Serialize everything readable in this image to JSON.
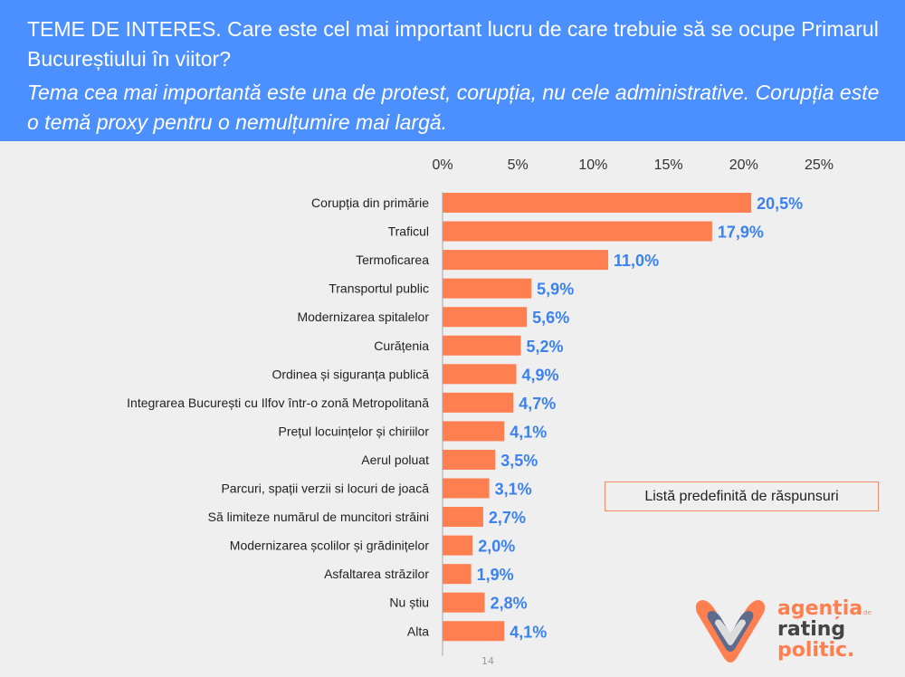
{
  "header": {
    "title": "TEME DE INTERES. Care este cel mai important lucru de care trebuie să se ocupe Primarul Bucureștiului în viitor?",
    "subtitle": "Tema cea mai importantă este una de protest, corupția, nu cele administrative. Corupția este o temă proxy pentru o nemulțumire mai largă."
  },
  "note": "Listă predefinită de răspunsuri",
  "page_number": "14",
  "logo": {
    "text": "agenția de rating politic."
  },
  "colors": {
    "header": "#4c8fff",
    "bar": "#ff7f50",
    "value_label": "#3b82f0",
    "background": "#efefef"
  },
  "chart_data": {
    "type": "bar",
    "orientation": "horizontal",
    "title": "",
    "xlabel": "",
    "ylabel": "",
    "xlim": [
      0,
      25
    ],
    "x_ticks": [
      "0%",
      "5%",
      "10%",
      "15%",
      "20%",
      "25%"
    ],
    "x_axis_position": "top",
    "grid": false,
    "categories": [
      "Corupția din primărie",
      "Traficul",
      "Termoficarea",
      "Transportul public",
      "Modernizarea spitalelor",
      "Curățenia",
      "Ordinea și siguranța publică",
      "Integrarea București cu Ilfov într-o zonă Metropolitană",
      "Prețul locuințelor și chiriilor",
      "Aerul poluat",
      "Parcuri, spații verzii si locuri de joacă",
      "Să limiteze numărul de muncitori străini",
      "Modernizarea școlilor și grădinițelor",
      "Asfaltarea străzilor",
      "Nu știu",
      "Alta"
    ],
    "values": [
      20.5,
      17.9,
      11.0,
      5.9,
      5.6,
      5.2,
      4.9,
      4.7,
      4.1,
      3.5,
      3.1,
      2.7,
      2.0,
      1.9,
      2.8,
      4.1
    ],
    "value_labels": [
      "20,5%",
      "17,9%",
      "11,0%",
      "5,9%",
      "5,6%",
      "5,2%",
      "4,9%",
      "4,7%",
      "4,1%",
      "3,5%",
      "3,1%",
      "2,7%",
      "2,0%",
      "1,9%",
      "2,8%",
      "4,1%"
    ]
  }
}
